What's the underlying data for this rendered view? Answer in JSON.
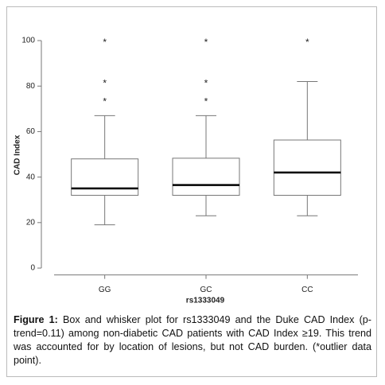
{
  "chart_data": {
    "type": "box",
    "x_label": "rs1333049",
    "y_label": "CAD Index",
    "categories": [
      "GG",
      "GC",
      "CC"
    ],
    "boxes": [
      {
        "whisker_low": 19,
        "q1": 32,
        "median": 35,
        "q3": 48,
        "whisker_high": 67,
        "outliers": [
          74,
          82,
          100
        ]
      },
      {
        "whisker_low": 23,
        "q1": 32,
        "median": 36.5,
        "q3": 48.3,
        "whisker_high": 67,
        "outliers": [
          74,
          82,
          100
        ]
      },
      {
        "whisker_low": 23,
        "q1": 32,
        "median": 42,
        "q3": 56.3,
        "whisker_high": 82,
        "outliers": [
          100
        ]
      }
    ],
    "outlier_symbol": "*",
    "ylim": [
      -3,
      104
    ],
    "yticks": [
      0,
      20,
      40,
      60,
      80,
      100
    ]
  },
  "caption": {
    "label": "Figure 1:",
    "text": "Box and whisker plot for rs1333049 and the Duke CAD Index (p-trend=0.11) among non-diabetic CAD patients with CAD Index ≥19. This trend was accounted for by location of lesions, but not CAD burden. (*outlier data point)."
  }
}
